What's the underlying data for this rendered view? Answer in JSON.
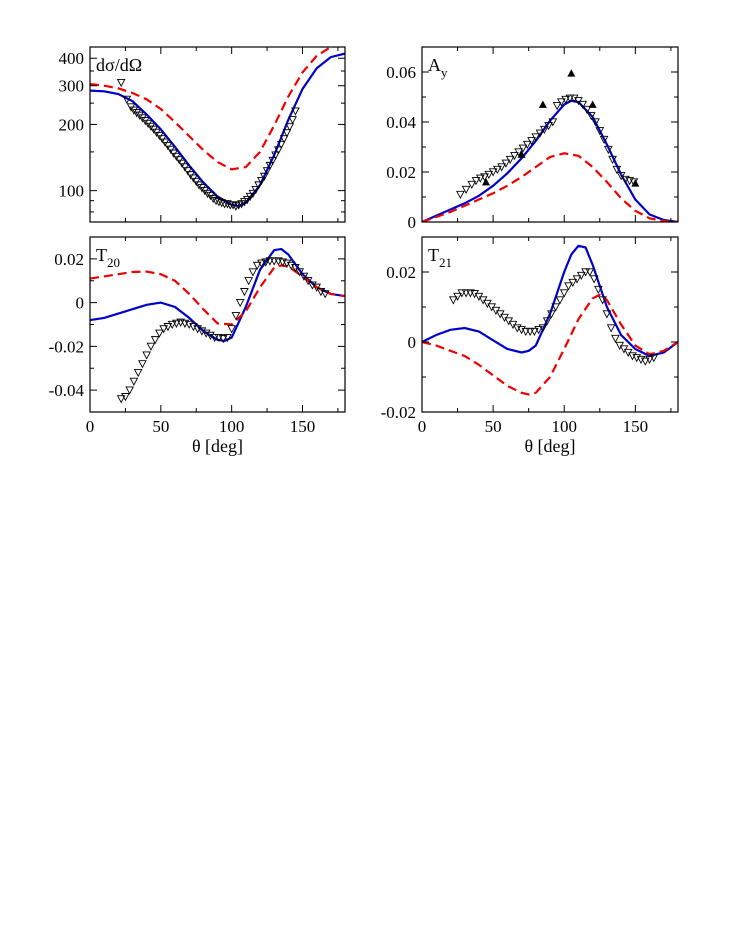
{
  "colors": {
    "solid": "#0000cc",
    "dashed": "#ee0000",
    "data": "#000000"
  },
  "chart_data": [
    {
      "type": "line",
      "label_main": "dσ/dΩ",
      "label_sub": "",
      "scale": "log",
      "xlim": [
        0,
        180
      ],
      "ylim": [
        72,
        450
      ],
      "yticks": [
        {
          "v": 100,
          "label": "100"
        },
        {
          "v": 200,
          "label": "200"
        },
        {
          "v": 300,
          "label": "300"
        },
        {
          "v": 400,
          "label": "400"
        }
      ],
      "yminor": [
        80,
        90,
        150,
        250,
        350
      ],
      "xticks": [
        {
          "v": 0,
          "label": ""
        },
        {
          "v": 50,
          "label": ""
        },
        {
          "v": 100,
          "label": ""
        },
        {
          "v": 150,
          "label": ""
        }
      ],
      "xlabel": "",
      "series": [
        {
          "style": "solid",
          "x": [
            0,
            10,
            20,
            30,
            40,
            50,
            60,
            70,
            80,
            90,
            100,
            105,
            110,
            120,
            130,
            140,
            150,
            160,
            170,
            180
          ],
          "y": [
            285,
            283,
            275,
            255,
            222,
            190,
            158,
            130,
            109,
            94,
            86,
            85,
            88,
            106,
            145,
            210,
            290,
            360,
            405,
            420
          ]
        },
        {
          "style": "dashed",
          "x": [
            0,
            10,
            20,
            30,
            40,
            50,
            60,
            70,
            80,
            90,
            100,
            110,
            120,
            130,
            140,
            150,
            160,
            170,
            180
          ],
          "y": [
            305,
            300,
            292,
            278,
            260,
            235,
            205,
            177,
            153,
            135,
            125,
            128,
            150,
            198,
            268,
            345,
            410,
            450,
            460
          ]
        },
        {
          "style": "open-triangle",
          "x": [
            22,
            26,
            29,
            31,
            33,
            35,
            37,
            39,
            41,
            43,
            45,
            47,
            49,
            51,
            53,
            55,
            57,
            59,
            61,
            63,
            65,
            67,
            69,
            71,
            73,
            75,
            77,
            79,
            81,
            83,
            85,
            87,
            89,
            91,
            93,
            95,
            97,
            99,
            101,
            103,
            105,
            107,
            109,
            111,
            113,
            115,
            117,
            119,
            121,
            123,
            125,
            127,
            129,
            131,
            133,
            135,
            137,
            139,
            141,
            143,
            145
          ],
          "y": [
            310,
            260,
            240,
            232,
            226,
            220,
            214,
            208,
            202,
            196,
            190,
            184,
            178,
            172,
            166,
            160,
            154,
            148,
            143,
            138,
            133,
            128,
            123,
            118,
            114,
            110,
            106,
            103,
            100,
            97,
            95,
            92,
            90,
            89,
            88,
            87,
            87,
            86,
            86,
            85,
            86,
            87,
            89,
            91,
            94,
            97,
            101,
            106,
            111,
            116,
            123,
            130,
            137,
            145,
            153,
            162,
            172,
            183,
            195,
            210,
            230
          ]
        },
        {
          "style": "filled-triangle",
          "x": [],
          "y": []
        }
      ]
    },
    {
      "type": "line",
      "label_main": "A",
      "label_sub": "y",
      "scale": "linear",
      "xlim": [
        0,
        180
      ],
      "ylim": [
        0,
        0.07
      ],
      "yticks": [
        {
          "v": 0,
          "label": "0"
        },
        {
          "v": 0.02,
          "label": "0.02"
        },
        {
          "v": 0.04,
          "label": "0.04"
        },
        {
          "v": 0.06,
          "label": "0.06"
        }
      ],
      "yminor": [
        0.01,
        0.03,
        0.05
      ],
      "xticks": [
        {
          "v": 0,
          "label": ""
        },
        {
          "v": 50,
          "label": ""
        },
        {
          "v": 100,
          "label": ""
        },
        {
          "v": 150,
          "label": ""
        }
      ],
      "xlabel": "",
      "series": [
        {
          "style": "solid",
          "x": [
            0,
            10,
            20,
            30,
            40,
            50,
            60,
            70,
            80,
            90,
            100,
            105,
            110,
            120,
            130,
            140,
            150,
            160,
            170,
            180
          ],
          "y": [
            0,
            0.0025,
            0.005,
            0.0075,
            0.0105,
            0.0145,
            0.0195,
            0.0255,
            0.0325,
            0.0405,
            0.047,
            0.0485,
            0.048,
            0.042,
            0.031,
            0.019,
            0.009,
            0.003,
            0.0008,
            0
          ]
        },
        {
          "style": "dashed",
          "x": [
            0,
            10,
            20,
            30,
            40,
            50,
            60,
            70,
            80,
            90,
            100,
            110,
            120,
            130,
            140,
            150,
            160,
            170,
            180
          ],
          "y": [
            0,
            0.002,
            0.004,
            0.0065,
            0.009,
            0.0115,
            0.0145,
            0.018,
            0.022,
            0.026,
            0.0275,
            0.0265,
            0.022,
            0.016,
            0.0095,
            0.0045,
            0.0015,
            0.0004,
            0
          ]
        },
        {
          "style": "open-triangle",
          "x": [
            27,
            31,
            35,
            38,
            41,
            44,
            47,
            50,
            53,
            56,
            59,
            62,
            65,
            68,
            71,
            74,
            77,
            80,
            83,
            86,
            89,
            92,
            95,
            98,
            101,
            104,
            107,
            110,
            113,
            116,
            119,
            122,
            125,
            128,
            131,
            134,
            137,
            140,
            143,
            146,
            149
          ],
          "y": [
            0.011,
            0.013,
            0.015,
            0.0165,
            0.0175,
            0.018,
            0.019,
            0.02,
            0.021,
            0.022,
            0.0235,
            0.025,
            0.0265,
            0.028,
            0.0295,
            0.031,
            0.0325,
            0.034,
            0.0355,
            0.037,
            0.0385,
            0.04,
            0.0465,
            0.048,
            0.049,
            0.0495,
            0.0495,
            0.0485,
            0.047,
            0.045,
            0.0425,
            0.04,
            0.0365,
            0.033,
            0.029,
            0.025,
            0.021,
            0.0185,
            0.017,
            0.0165,
            0.016
          ]
        },
        {
          "style": "filled-triangle",
          "x": [
            45,
            70,
            85,
            105,
            120,
            150
          ],
          "y": [
            0.016,
            0.027,
            0.047,
            0.0595,
            0.047,
            0.0155
          ]
        }
      ]
    },
    {
      "type": "line",
      "label_main": "T",
      "label_sub": "20",
      "scale": "linear",
      "xlim": [
        0,
        180
      ],
      "ylim": [
        -0.05,
        0.03
      ],
      "yticks": [
        {
          "v": -0.04,
          "label": "-0.04"
        },
        {
          "v": -0.02,
          "label": "-0.02"
        },
        {
          "v": 0,
          "label": "0"
        },
        {
          "v": 0.02,
          "label": "0.02"
        }
      ],
      "yminor": [
        -0.03,
        -0.01,
        0.01
      ],
      "xticks": [
        {
          "v": 0,
          "label": "0"
        },
        {
          "v": 50,
          "label": "50"
        },
        {
          "v": 100,
          "label": "100"
        },
        {
          "v": 150,
          "label": "150"
        }
      ],
      "xlabel": "θ [deg]",
      "series": [
        {
          "style": "solid",
          "x": [
            0,
            10,
            20,
            30,
            40,
            50,
            60,
            70,
            80,
            90,
            95,
            100,
            110,
            120,
            130,
            135,
            140,
            150,
            160,
            170,
            180
          ],
          "y": [
            -0.008,
            -0.007,
            -0.005,
            -0.003,
            -0.001,
            0,
            -0.002,
            -0.007,
            -0.013,
            -0.017,
            -0.0175,
            -0.016,
            -0.002,
            0.015,
            0.024,
            0.0245,
            0.022,
            0.013,
            0.007,
            0.004,
            0.003
          ]
        },
        {
          "style": "dashed",
          "x": [
            0,
            10,
            20,
            30,
            40,
            50,
            60,
            70,
            80,
            90,
            100,
            110,
            120,
            130,
            135,
            140,
            150,
            160,
            170,
            180
          ],
          "y": [
            0.011,
            0.012,
            0.013,
            0.014,
            0.0142,
            0.013,
            0.01,
            0.004,
            -0.003,
            -0.0095,
            -0.01,
            -0.004,
            0.007,
            0.016,
            0.017,
            0.0165,
            0.012,
            0.007,
            0.004,
            0.003
          ]
        },
        {
          "style": "open-triangle",
          "x": [
            22,
            25,
            28,
            31,
            34,
            37,
            40,
            43,
            46,
            49,
            52,
            55,
            58,
            61,
            64,
            67,
            70,
            73,
            76,
            79,
            82,
            85,
            88,
            91,
            94,
            97,
            100,
            103,
            106,
            109,
            112,
            115,
            118,
            121,
            124,
            127,
            130,
            133,
            136,
            139,
            142,
            145,
            148,
            151,
            154,
            157,
            160,
            163,
            166
          ],
          "y": [
            -0.044,
            -0.043,
            -0.04,
            -0.036,
            -0.032,
            -0.028,
            -0.024,
            -0.02,
            -0.017,
            -0.014,
            -0.012,
            -0.011,
            -0.01,
            -0.0095,
            -0.009,
            -0.0095,
            -0.01,
            -0.011,
            -0.012,
            -0.013,
            -0.014,
            -0.015,
            -0.016,
            -0.016,
            -0.0165,
            -0.016,
            -0.012,
            -0.006,
            0,
            0.005,
            0.01,
            0.014,
            0.017,
            0.018,
            0.0185,
            0.019,
            0.019,
            0.019,
            0.0185,
            0.018,
            0.017,
            0.016,
            0.014,
            0.012,
            0.01,
            0.008,
            0.007,
            0.005,
            0.004
          ]
        },
        {
          "style": "filled-triangle",
          "x": [],
          "y": []
        }
      ]
    },
    {
      "type": "line",
      "label_main": "T",
      "label_sub": "21",
      "scale": "linear",
      "xlim": [
        0,
        180
      ],
      "ylim": [
        -0.02,
        0.03
      ],
      "yticks": [
        {
          "v": -0.02,
          "label": "-0.02"
        },
        {
          "v": 0,
          "label": "0"
        },
        {
          "v": 0.02,
          "label": "0.02"
        }
      ],
      "yminor": [
        -0.01,
        0.01
      ],
      "xticks": [
        {
          "v": 0,
          "label": "0"
        },
        {
          "v": 50,
          "label": "50"
        },
        {
          "v": 100,
          "label": "100"
        },
        {
          "v": 150,
          "label": "150"
        }
      ],
      "xlabel": "θ [deg]",
      "series": [
        {
          "style": "solid",
          "x": [
            0,
            10,
            20,
            30,
            40,
            50,
            60,
            70,
            75,
            80,
            90,
            100,
            105,
            110,
            115,
            120,
            130,
            140,
            150,
            160,
            170,
            180
          ],
          "y": [
            0,
            0.002,
            0.0035,
            0.004,
            0.003,
            0.0005,
            -0.002,
            -0.003,
            -0.0025,
            -0.001,
            0.008,
            0.02,
            0.025,
            0.0275,
            0.027,
            0.022,
            0.01,
            0.002,
            -0.002,
            -0.004,
            -0.003,
            0
          ]
        },
        {
          "style": "dashed",
          "x": [
            0,
            10,
            20,
            30,
            40,
            50,
            60,
            70,
            75,
            80,
            90,
            100,
            110,
            120,
            125,
            130,
            140,
            150,
            160,
            170,
            180
          ],
          "y": [
            0,
            -0.001,
            -0.0025,
            -0.004,
            -0.0065,
            -0.0095,
            -0.0125,
            -0.0145,
            -0.015,
            -0.0145,
            -0.01,
            -0.002,
            0.0065,
            0.0125,
            0.0135,
            0.012,
            0.005,
            -0.001,
            -0.0035,
            -0.0025,
            0
          ]
        },
        {
          "style": "open-triangle",
          "x": [
            22,
            25,
            28,
            31,
            34,
            37,
            40,
            43,
            46,
            49,
            52,
            55,
            58,
            61,
            64,
            67,
            70,
            73,
            76,
            79,
            82,
            85,
            88,
            91,
            94,
            97,
            100,
            103,
            106,
            109,
            112,
            115,
            118,
            121,
            124,
            127,
            130,
            133,
            136,
            139,
            142,
            145,
            148,
            151,
            154,
            157,
            160,
            163
          ],
          "y": [
            0.012,
            0.013,
            0.014,
            0.014,
            0.014,
            0.0138,
            0.013,
            0.012,
            0.011,
            0.01,
            0.009,
            0.008,
            0.007,
            0.006,
            0.005,
            0.004,
            0.0035,
            0.003,
            0.003,
            0.003,
            0.0035,
            0.004,
            0.006,
            0.008,
            0.01,
            0.012,
            0.014,
            0.016,
            0.017,
            0.018,
            0.019,
            0.02,
            0.02,
            0.018,
            0.015,
            0.012,
            0.008,
            0.004,
            0.001,
            -0.001,
            -0.002,
            -0.003,
            -0.004,
            -0.0045,
            -0.005,
            -0.0055,
            -0.005,
            -0.0045
          ]
        },
        {
          "style": "filled-triangle",
          "x": [],
          "y": []
        }
      ]
    }
  ]
}
